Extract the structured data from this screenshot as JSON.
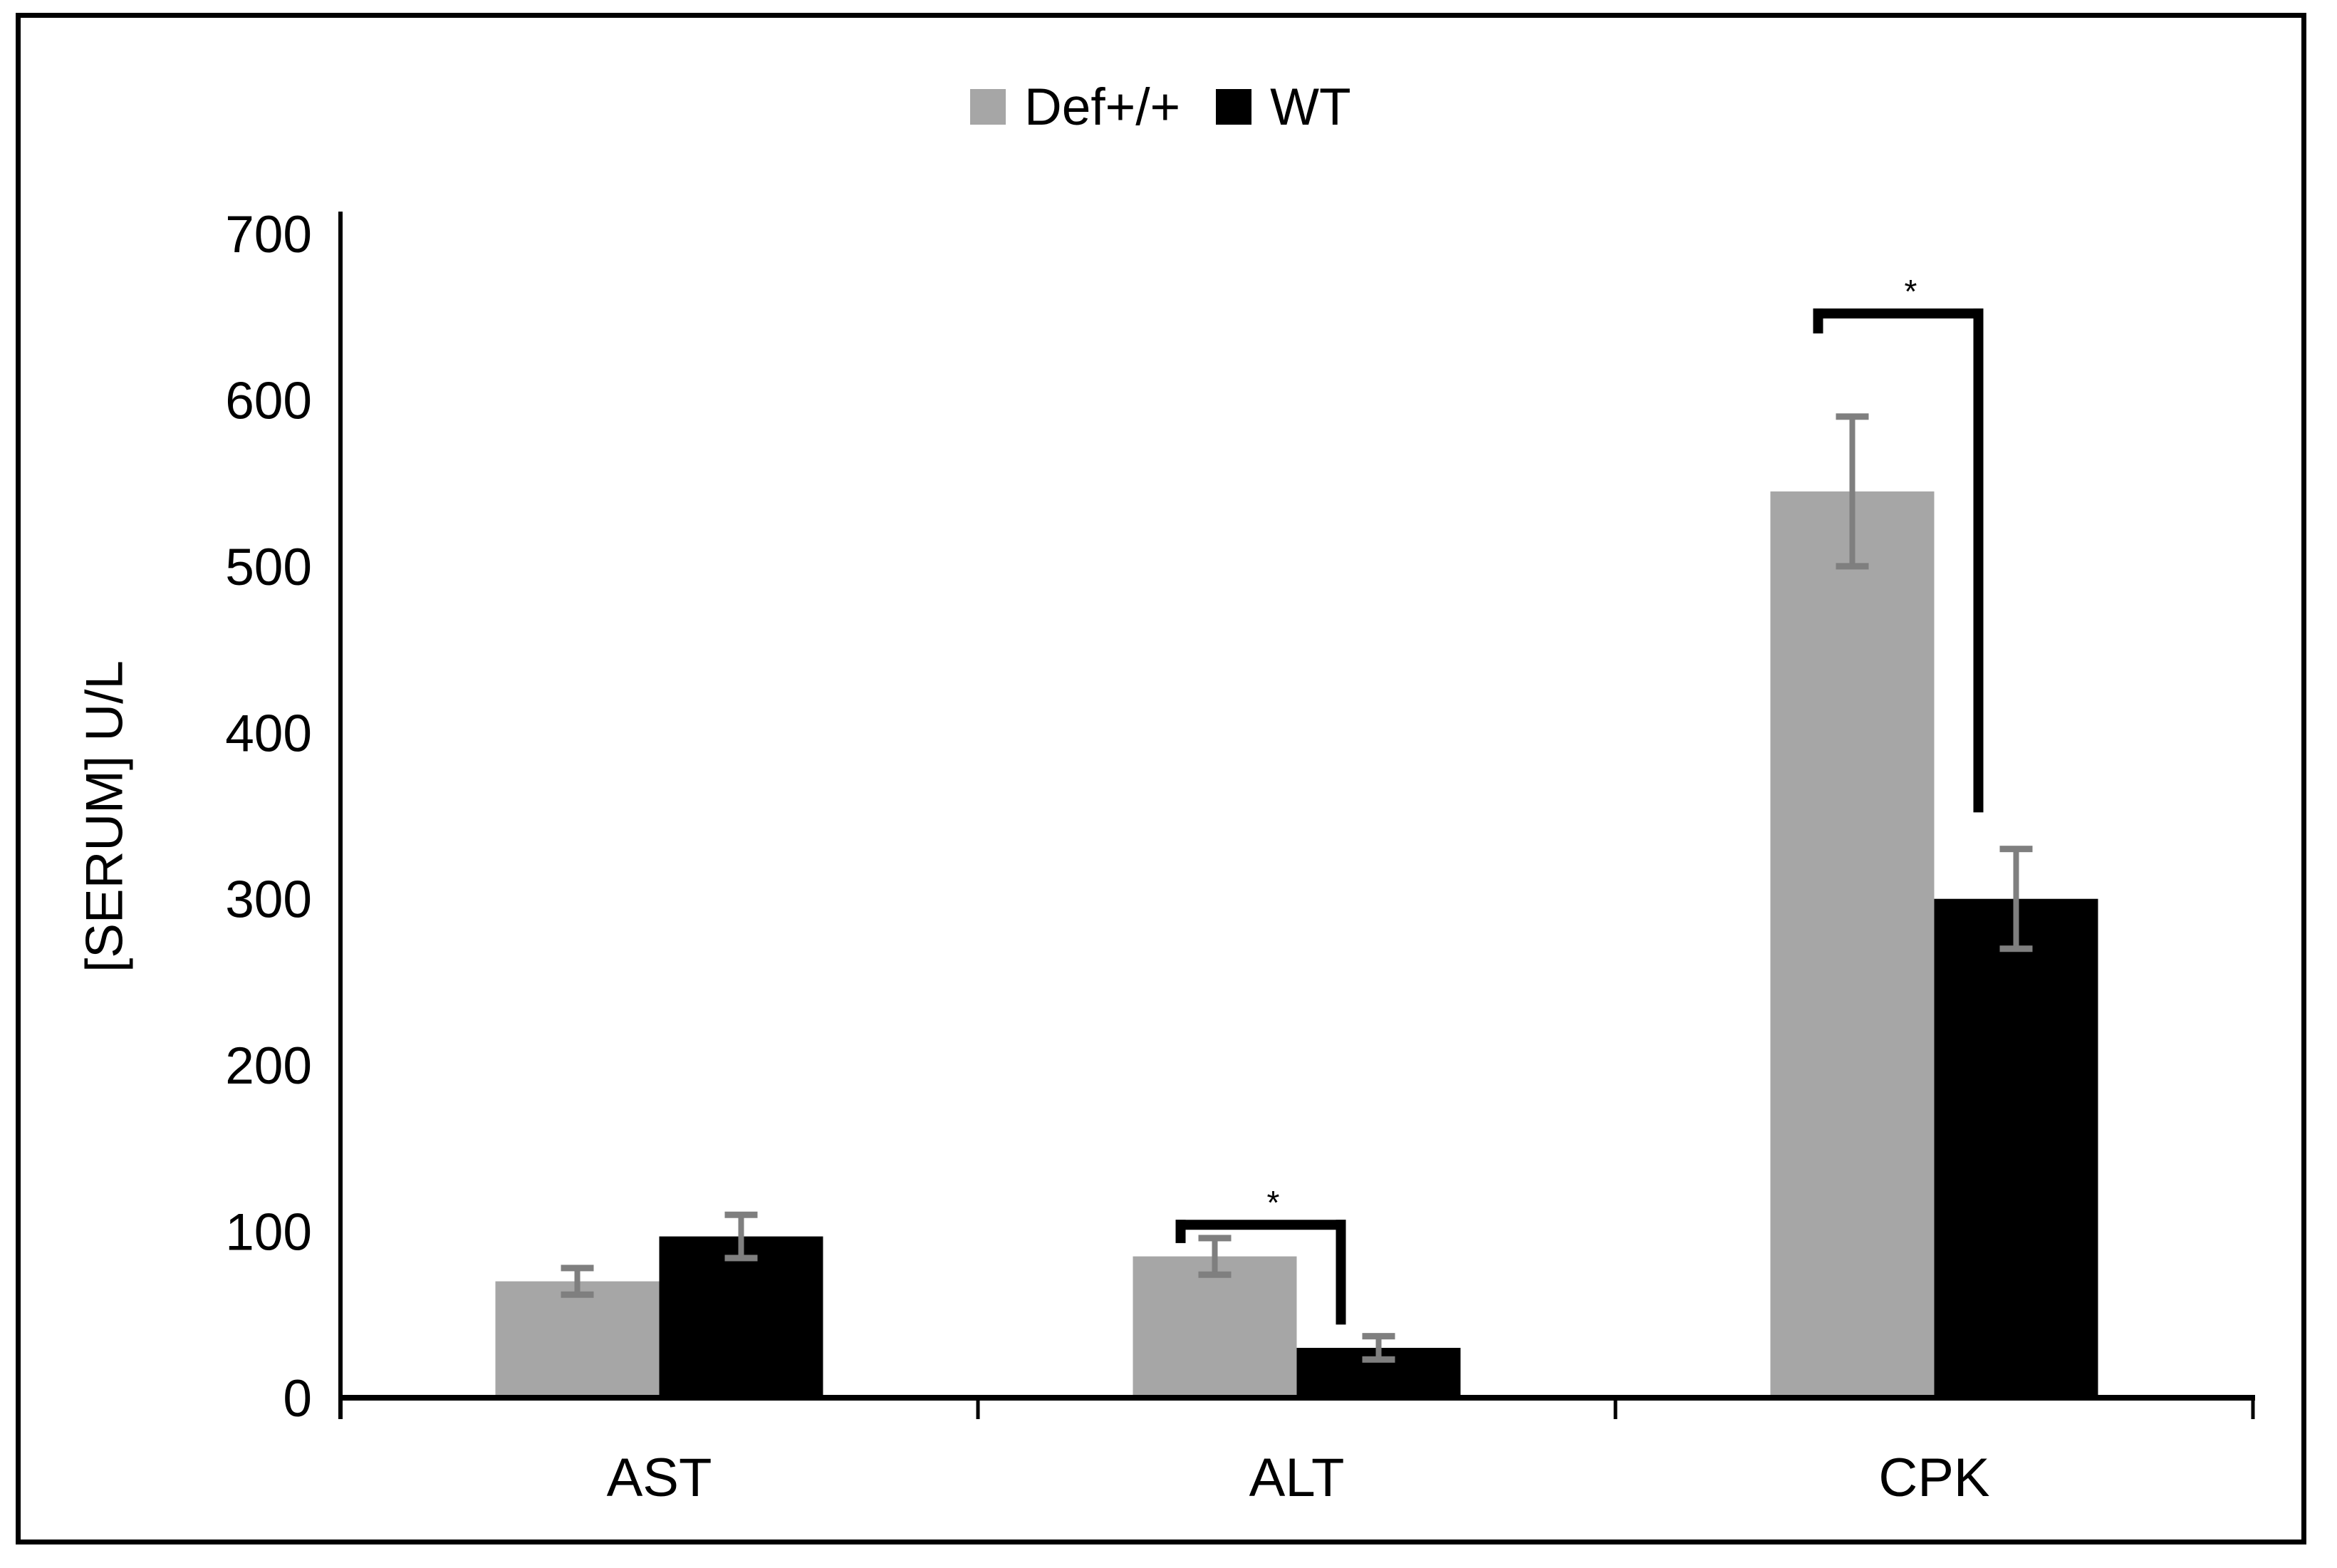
{
  "figure": {
    "background": "#ffffff",
    "border_color": "#000000"
  },
  "legend": {
    "position": "top-center",
    "items": [
      {
        "label": "Def+/+",
        "color": "#a6a6a6"
      },
      {
        "label": "WT",
        "color": "#000000"
      }
    ]
  },
  "chart_data": {
    "type": "bar",
    "title": "",
    "ylabel": "[SERUM] U/L",
    "xlabel": "",
    "categories": [
      "AST",
      "ALT",
      "CPK"
    ],
    "series": [
      {
        "name": "Def+/+",
        "color": "#a6a6a6",
        "values": [
          70,
          85,
          545
        ],
        "errors": [
          8,
          11,
          45
        ]
      },
      {
        "name": "WT",
        "color": "#000000",
        "values": [
          97,
          30,
          300
        ],
        "errors": [
          13,
          7,
          30
        ]
      }
    ],
    "error_bar_color": "#7f7f7f",
    "axis_color": "#000000",
    "ylim": [
      0,
      700
    ],
    "yticks": [
      0,
      100,
      200,
      300,
      400,
      500,
      600,
      700
    ],
    "grid": false,
    "legend_position": "top",
    "significance_brackets": [
      {
        "category": "ALT",
        "between": [
          "Def+/+",
          "WT"
        ],
        "label": "*",
        "bar_top_value": 107,
        "left_stub_bottom_value": 93,
        "right_arm_bottom_value": 44
      },
      {
        "category": "CPK",
        "between": [
          "Def+/+",
          "WT"
        ],
        "label": "*",
        "bar_top_value": 655,
        "left_stub_bottom_value": 640,
        "right_arm_bottom_value": 352
      }
    ]
  }
}
